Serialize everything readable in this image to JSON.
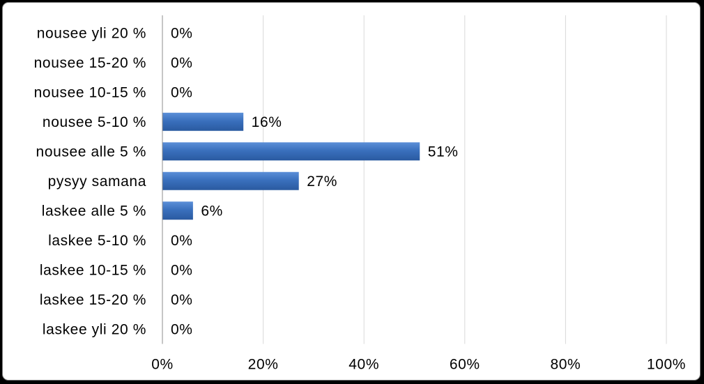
{
  "chart_data": {
    "type": "bar",
    "orientation": "horizontal",
    "categories": [
      "nousee yli 20 %",
      "nousee 15-20 %",
      "nousee 10-15 %",
      "nousee 5-10 %",
      "nousee alle 5 %",
      "pysyy samana",
      "laskee alle 5 %",
      "laskee 5-10 %",
      "laskee 10-15 %",
      "laskee 15-20 %",
      "laskee yli 20 %"
    ],
    "values": [
      0,
      0,
      0,
      16,
      51,
      27,
      6,
      0,
      0,
      0,
      0
    ],
    "data_labels": [
      "0%",
      "0%",
      "0%",
      "16%",
      "51%",
      "27%",
      "6%",
      "0%",
      "0%",
      "0%",
      "0%"
    ],
    "value_unit": "%",
    "xlim": [
      0,
      100
    ],
    "xticks": [
      0,
      20,
      40,
      60,
      80,
      100
    ],
    "xtick_labels": [
      "0%",
      "20%",
      "40%",
      "60%",
      "80%",
      "100%"
    ],
    "grid": "vertical",
    "legend": "none",
    "title": "",
    "xlabel": "",
    "ylabel": "",
    "bar_color": "#3a70bd",
    "bar_color_light": "#5b8fd8",
    "bar_color_dark": "#2a5aa0",
    "gridline_color": "#d9d9d9",
    "axis_color": "#8c8c8c"
  }
}
